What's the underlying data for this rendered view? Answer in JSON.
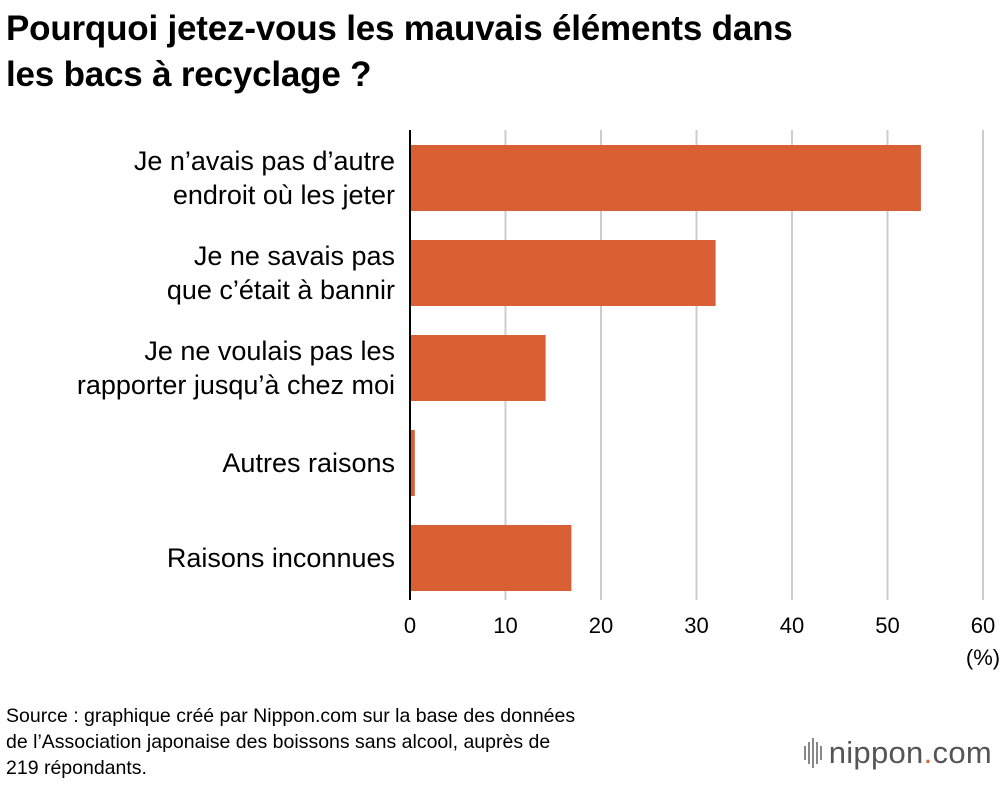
{
  "title_lines": [
    "Pourquoi jetez-vous les mauvais éléments dans",
    "les bacs à recyclage ?"
  ],
  "source_lines": [
    "Source : graphique créé par Nippon.com sur la base des données",
    "de l’Association japonaise des boissons sans alcool, auprès de",
    "219 répondants."
  ],
  "logo": {
    "name": "nippon",
    "dot": ".",
    "tld": "com"
  },
  "colors": {
    "bar": "#d95f34",
    "grid": "#cccccc",
    "axis": "#000000"
  },
  "chart_data": {
    "type": "bar",
    "orientation": "horizontal",
    "categories": [
      [
        "Je n’avais pas d’autre",
        "endroit où les jeter"
      ],
      [
        "Je ne savais pas",
        "que c’était à bannir"
      ],
      [
        "Je ne voulais pas les",
        "rapporter jusqu’à chez moi"
      ],
      [
        "Autres raisons"
      ],
      [
        "Raisons inconnues"
      ]
    ],
    "values": [
      53.5,
      32.0,
      14.2,
      0.5,
      16.9
    ],
    "xlim": [
      0,
      60
    ],
    "xticks": [
      0,
      10,
      20,
      30,
      40,
      50,
      60
    ],
    "xunit": "(%)",
    "grid": true
  }
}
